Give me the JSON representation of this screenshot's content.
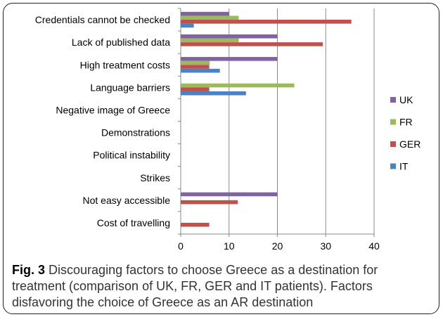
{
  "chart_data": {
    "type": "bar",
    "orientation": "horizontal",
    "categories": [
      "Credentials cannot be checked",
      "Lack of published data",
      "High treatment costs",
      "Language barriers",
      "Negative image of Greece",
      "Demonstrations",
      "Political instability",
      "Strikes",
      "Not easy accessible",
      "Cost of travelling"
    ],
    "series": [
      {
        "name": "UK",
        "color": "#8064A2",
        "values": [
          10,
          20,
          20,
          0,
          0,
          0,
          0,
          0,
          20,
          0
        ]
      },
      {
        "name": "FR",
        "color": "#9BBB59",
        "values": [
          12,
          12,
          6,
          23.5,
          0,
          0,
          0,
          0,
          0,
          0
        ]
      },
      {
        "name": "GER",
        "color": "#C0504D",
        "values": [
          35.3,
          29.4,
          5.9,
          5.9,
          0,
          0,
          0,
          0,
          11.8,
          5.9
        ]
      },
      {
        "name": "IT",
        "color": "#4F81BD",
        "values": [
          2.7,
          0,
          8.1,
          13.5,
          0,
          0,
          0,
          0,
          0,
          0
        ]
      }
    ],
    "xlim": [
      0,
      40
    ],
    "xticks": [
      0,
      10,
      20,
      30,
      40
    ],
    "grid": "vertical major gridlines",
    "legend_position": "right",
    "legend_order": [
      "UK",
      "FR",
      "GER",
      "IT"
    ]
  },
  "caption": {
    "label": "Fig. 3",
    "text": "Discouraging factors to choose Greece as a destination for treatment (comparison of UK, FR, GER and IT patients). Factors disfavoring the choice of Greece as an AR destination"
  }
}
